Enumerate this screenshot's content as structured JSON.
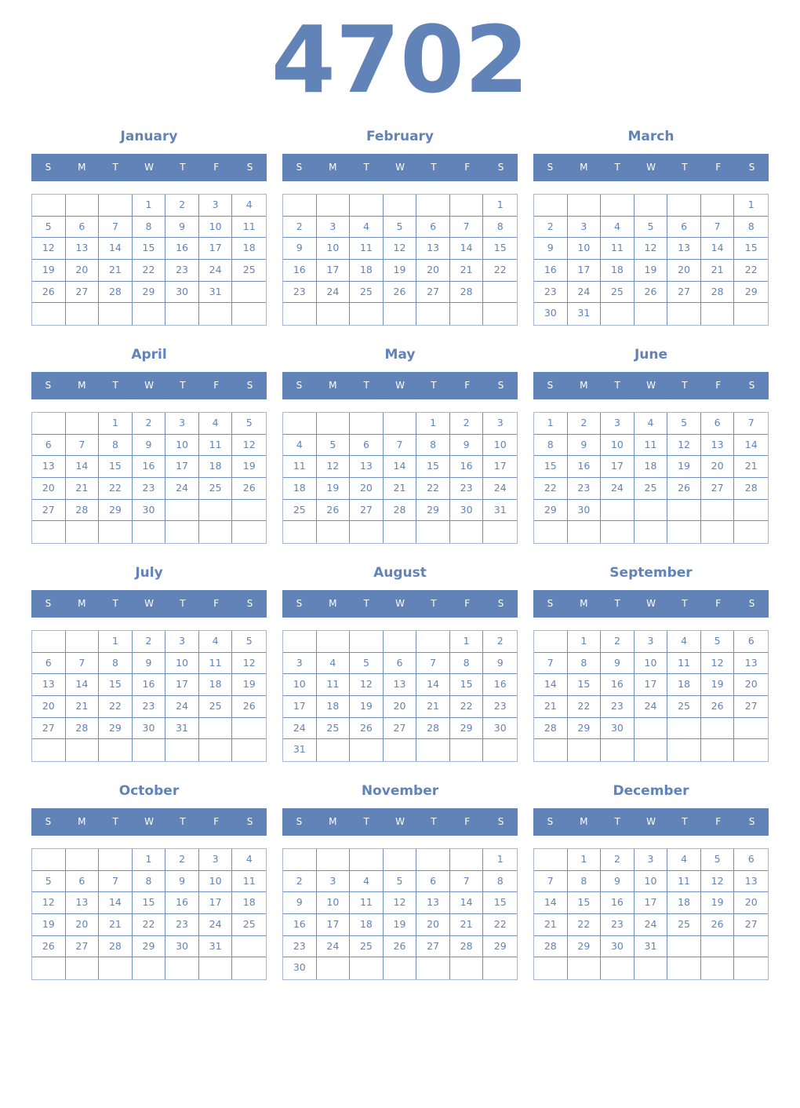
{
  "year": "4702",
  "colors": {
    "accent": "#6183b7",
    "header_text": "#ffffff",
    "grid_outer": "#a5b7d7"
  },
  "weekdays": [
    "S",
    "M",
    "T",
    "W",
    "T",
    "F",
    "S"
  ],
  "months": [
    {
      "name": "January",
      "weeks": [
        [
          "",
          "",
          "",
          "1",
          "2",
          "3",
          "4"
        ],
        [
          "5",
          "6",
          "7",
          "8",
          "9",
          "10",
          "11"
        ],
        [
          "12",
          "13",
          "14",
          "15",
          "16",
          "17",
          "18"
        ],
        [
          "19",
          "20",
          "21",
          "22",
          "23",
          "24",
          "25"
        ],
        [
          "26",
          "27",
          "28",
          "29",
          "30",
          "31",
          ""
        ],
        [
          "",
          "",
          "",
          "",
          "",
          "",
          ""
        ]
      ]
    },
    {
      "name": "February",
      "weeks": [
        [
          "",
          "",
          "",
          "",
          "",
          "",
          "1"
        ],
        [
          "2",
          "3",
          "4",
          "5",
          "6",
          "7",
          "8"
        ],
        [
          "9",
          "10",
          "11",
          "12",
          "13",
          "14",
          "15"
        ],
        [
          "16",
          "17",
          "18",
          "19",
          "20",
          "21",
          "22"
        ],
        [
          "23",
          "24",
          "25",
          "26",
          "27",
          "28",
          ""
        ],
        [
          "",
          "",
          "",
          "",
          "",
          "",
          ""
        ]
      ]
    },
    {
      "name": "March",
      "weeks": [
        [
          "",
          "",
          "",
          "",
          "",
          "",
          "1"
        ],
        [
          "2",
          "3",
          "4",
          "5",
          "6",
          "7",
          "8"
        ],
        [
          "9",
          "10",
          "11",
          "12",
          "13",
          "14",
          "15"
        ],
        [
          "16",
          "17",
          "18",
          "19",
          "20",
          "21",
          "22"
        ],
        [
          "23",
          "24",
          "25",
          "26",
          "27",
          "28",
          "29"
        ],
        [
          "30",
          "31",
          "",
          "",
          "",
          "",
          ""
        ]
      ]
    },
    {
      "name": "April",
      "weeks": [
        [
          "",
          "",
          "1",
          "2",
          "3",
          "4",
          "5"
        ],
        [
          "6",
          "7",
          "8",
          "9",
          "10",
          "11",
          "12"
        ],
        [
          "13",
          "14",
          "15",
          "16",
          "17",
          "18",
          "19"
        ],
        [
          "20",
          "21",
          "22",
          "23",
          "24",
          "25",
          "26"
        ],
        [
          "27",
          "28",
          "29",
          "30",
          "",
          "",
          ""
        ],
        [
          "",
          "",
          "",
          "",
          "",
          "",
          ""
        ]
      ]
    },
    {
      "name": "May",
      "weeks": [
        [
          "",
          "",
          "",
          "",
          "1",
          "2",
          "3"
        ],
        [
          "4",
          "5",
          "6",
          "7",
          "8",
          "9",
          "10"
        ],
        [
          "11",
          "12",
          "13",
          "14",
          "15",
          "16",
          "17"
        ],
        [
          "18",
          "19",
          "20",
          "21",
          "22",
          "23",
          "24"
        ],
        [
          "25",
          "26",
          "27",
          "28",
          "29",
          "30",
          "31"
        ],
        [
          "",
          "",
          "",
          "",
          "",
          "",
          ""
        ]
      ]
    },
    {
      "name": "June",
      "weeks": [
        [
          "1",
          "2",
          "3",
          "4",
          "5",
          "6",
          "7"
        ],
        [
          "8",
          "9",
          "10",
          "11",
          "12",
          "13",
          "14"
        ],
        [
          "15",
          "16",
          "17",
          "18",
          "19",
          "20",
          "21"
        ],
        [
          "22",
          "23",
          "24",
          "25",
          "26",
          "27",
          "28"
        ],
        [
          "29",
          "30",
          "",
          "",
          "",
          "",
          ""
        ],
        [
          "",
          "",
          "",
          "",
          "",
          "",
          ""
        ]
      ]
    },
    {
      "name": "July",
      "weeks": [
        [
          "",
          "",
          "1",
          "2",
          "3",
          "4",
          "5"
        ],
        [
          "6",
          "7",
          "8",
          "9",
          "10",
          "11",
          "12"
        ],
        [
          "13",
          "14",
          "15",
          "16",
          "17",
          "18",
          "19"
        ],
        [
          "20",
          "21",
          "22",
          "23",
          "24",
          "25",
          "26"
        ],
        [
          "27",
          "28",
          "29",
          "30",
          "31",
          "",
          ""
        ],
        [
          "",
          "",
          "",
          "",
          "",
          "",
          ""
        ]
      ]
    },
    {
      "name": "August",
      "weeks": [
        [
          "",
          "",
          "",
          "",
          "",
          "1",
          "2"
        ],
        [
          "3",
          "4",
          "5",
          "6",
          "7",
          "8",
          "9"
        ],
        [
          "10",
          "11",
          "12",
          "13",
          "14",
          "15",
          "16"
        ],
        [
          "17",
          "18",
          "19",
          "20",
          "21",
          "22",
          "23"
        ],
        [
          "24",
          "25",
          "26",
          "27",
          "28",
          "29",
          "30"
        ],
        [
          "31",
          "",
          "",
          "",
          "",
          "",
          ""
        ]
      ]
    },
    {
      "name": "September",
      "weeks": [
        [
          "",
          "1",
          "2",
          "3",
          "4",
          "5",
          "6"
        ],
        [
          "7",
          "8",
          "9",
          "10",
          "11",
          "12",
          "13"
        ],
        [
          "14",
          "15",
          "16",
          "17",
          "18",
          "19",
          "20"
        ],
        [
          "21",
          "22",
          "23",
          "24",
          "25",
          "26",
          "27"
        ],
        [
          "28",
          "29",
          "30",
          "",
          "",
          "",
          ""
        ],
        [
          "",
          "",
          "",
          "",
          "",
          "",
          ""
        ]
      ]
    },
    {
      "name": "October",
      "weeks": [
        [
          "",
          "",
          "",
          "1",
          "2",
          "3",
          "4"
        ],
        [
          "5",
          "6",
          "7",
          "8",
          "9",
          "10",
          "11"
        ],
        [
          "12",
          "13",
          "14",
          "15",
          "16",
          "17",
          "18"
        ],
        [
          "19",
          "20",
          "21",
          "22",
          "23",
          "24",
          "25"
        ],
        [
          "26",
          "27",
          "28",
          "29",
          "30",
          "31",
          ""
        ],
        [
          "",
          "",
          "",
          "",
          "",
          "",
          ""
        ]
      ]
    },
    {
      "name": "November",
      "weeks": [
        [
          "",
          "",
          "",
          "",
          "",
          "",
          "1"
        ],
        [
          "2",
          "3",
          "4",
          "5",
          "6",
          "7",
          "8"
        ],
        [
          "9",
          "10",
          "11",
          "12",
          "13",
          "14",
          "15"
        ],
        [
          "16",
          "17",
          "18",
          "19",
          "20",
          "21",
          "22"
        ],
        [
          "23",
          "24",
          "25",
          "26",
          "27",
          "28",
          "29"
        ],
        [
          "30",
          "",
          "",
          "",
          "",
          "",
          ""
        ]
      ]
    },
    {
      "name": "December",
      "weeks": [
        [
          "",
          "1",
          "2",
          "3",
          "4",
          "5",
          "6"
        ],
        [
          "7",
          "8",
          "9",
          "10",
          "11",
          "12",
          "13"
        ],
        [
          "14",
          "15",
          "16",
          "17",
          "18",
          "19",
          "20"
        ],
        [
          "21",
          "22",
          "23",
          "24",
          "25",
          "26",
          "27"
        ],
        [
          "28",
          "29",
          "30",
          "31",
          "",
          "",
          ""
        ],
        [
          "",
          "",
          "",
          "",
          "",
          "",
          ""
        ]
      ]
    }
  ]
}
